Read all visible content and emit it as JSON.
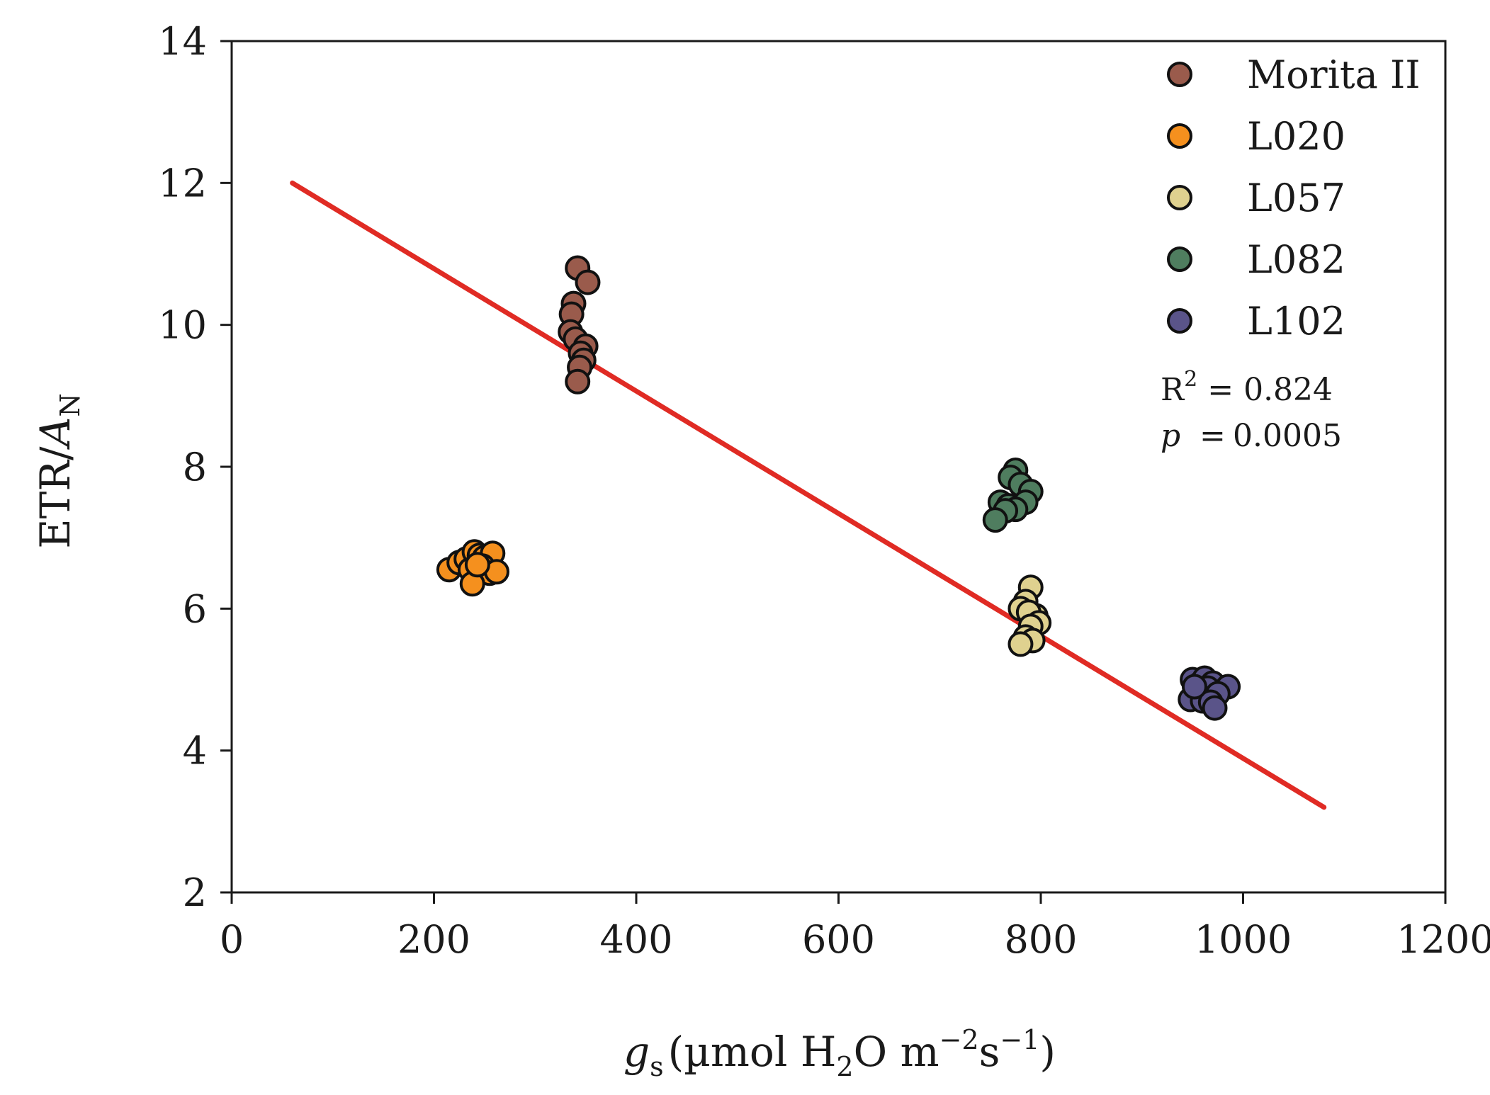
{
  "chart_data": {
    "type": "scatter",
    "title": "",
    "xlabel": {
      "symbol": "g",
      "sub": "s",
      "units_open": "(µmol H",
      "h2o_sub": "2",
      "units_mid": "O m",
      "m_exp": "−2",
      "s_unit": "s",
      "s_exp": "−1",
      "units_close": ")"
    },
    "ylabel": {
      "prefix": "ETR/",
      "symbol": "A",
      "sub": "N"
    },
    "xlim": [
      0,
      1200
    ],
    "ylim": [
      2,
      14
    ],
    "xticks": [
      "0",
      "200",
      "400",
      "600",
      "800",
      "1000",
      "1200"
    ],
    "yticks": [
      "2",
      "4",
      "6",
      "8",
      "10",
      "12",
      "14"
    ],
    "grid": false,
    "legend_position": "top-right",
    "series": [
      {
        "name": "Morita II",
        "color": "#9a5b4c",
        "points": [
          [
            342,
            10.8
          ],
          [
            352,
            10.6
          ],
          [
            338,
            10.3
          ],
          [
            336,
            10.15
          ],
          [
            335,
            9.9
          ],
          [
            340,
            9.8
          ],
          [
            350,
            9.7
          ],
          [
            345,
            9.6
          ],
          [
            348,
            9.5
          ],
          [
            344,
            9.4
          ],
          [
            342,
            9.2
          ]
        ]
      },
      {
        "name": "L020",
        "color": "#f5901e",
        "points": [
          [
            215,
            6.55
          ],
          [
            225,
            6.65
          ],
          [
            232,
            6.7
          ],
          [
            240,
            6.8
          ],
          [
            245,
            6.75
          ],
          [
            250,
            6.72
          ],
          [
            258,
            6.78
          ],
          [
            236,
            6.55
          ],
          [
            248,
            6.6
          ],
          [
            255,
            6.5
          ],
          [
            262,
            6.52
          ],
          [
            238,
            6.35
          ],
          [
            243,
            6.62
          ]
        ]
      },
      {
        "name": "L057",
        "color": "#dfd18f",
        "points": [
          [
            790,
            6.3
          ],
          [
            785,
            6.1
          ],
          [
            780,
            6.0
          ],
          [
            795,
            5.9
          ],
          [
            788,
            5.95
          ],
          [
            798,
            5.8
          ],
          [
            790,
            5.75
          ],
          [
            785,
            5.6
          ],
          [
            792,
            5.55
          ],
          [
            780,
            5.5
          ]
        ]
      },
      {
        "name": "L082",
        "color": "#4f7d5f",
        "points": [
          [
            775,
            7.95
          ],
          [
            770,
            7.85
          ],
          [
            780,
            7.75
          ],
          [
            760,
            7.5
          ],
          [
            768,
            7.45
          ],
          [
            790,
            7.65
          ],
          [
            785,
            7.5
          ],
          [
            775,
            7.4
          ],
          [
            765,
            7.38
          ],
          [
            755,
            7.25
          ]
        ]
      },
      {
        "name": "L102",
        "color": "#5a5489",
        "points": [
          [
            950,
            5.0
          ],
          [
            958,
            4.95
          ],
          [
            962,
            5.02
          ],
          [
            970,
            4.95
          ],
          [
            985,
            4.9
          ],
          [
            955,
            4.85
          ],
          [
            965,
            4.88
          ],
          [
            975,
            4.8
          ],
          [
            948,
            4.72
          ],
          [
            960,
            4.7
          ],
          [
            968,
            4.68
          ],
          [
            972,
            4.6
          ],
          [
            952,
            4.9
          ]
        ]
      }
    ],
    "trendline": {
      "color": "#e02b24",
      "x": [
        60,
        1080
      ],
      "y": [
        12.0,
        3.2
      ]
    },
    "annotations": {
      "r2_label": "R",
      "r2_exp": "2",
      "r2_value": " = 0.824",
      "p_label": "p",
      "p_value": "0.0005",
      "p_eq": "="
    }
  }
}
